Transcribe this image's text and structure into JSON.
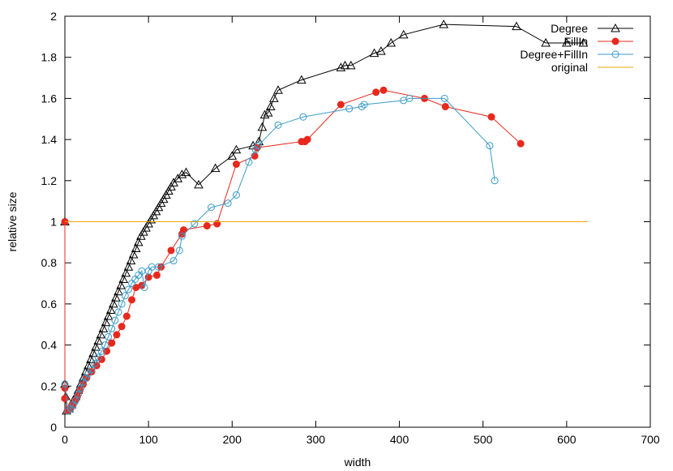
{
  "chart_data": {
    "type": "line",
    "xlabel": "width",
    "ylabel": "relative size",
    "xlim": [
      0,
      700
    ],
    "ylim": [
      0,
      2
    ],
    "xticks": [
      0,
      100,
      200,
      300,
      400,
      500,
      600,
      700
    ],
    "yticks": [
      0,
      0.2,
      0.4,
      0.6,
      0.8,
      1,
      1.2,
      1.4,
      1.6,
      1.8,
      2
    ],
    "grid": false,
    "legend_position": "top-right",
    "series": [
      {
        "name": "Degree",
        "color": "#000000",
        "marker": "triangle-open",
        "points": [
          [
            0,
            1.0
          ],
          [
            0,
            0.21
          ],
          [
            1,
            0.15
          ],
          [
            2,
            0.08
          ],
          [
            5,
            0.09
          ],
          [
            8,
            0.11
          ],
          [
            10,
            0.13
          ],
          [
            13,
            0.15
          ],
          [
            16,
            0.18
          ],
          [
            19,
            0.21
          ],
          [
            22,
            0.24
          ],
          [
            25,
            0.27
          ],
          [
            28,
            0.3
          ],
          [
            31,
            0.33
          ],
          [
            34,
            0.36
          ],
          [
            37,
            0.39
          ],
          [
            40,
            0.42
          ],
          [
            43,
            0.45
          ],
          [
            46,
            0.48
          ],
          [
            49,
            0.51
          ],
          [
            52,
            0.54
          ],
          [
            55,
            0.57
          ],
          [
            58,
            0.6
          ],
          [
            61,
            0.63
          ],
          [
            64,
            0.66
          ],
          [
            67,
            0.69
          ],
          [
            70,
            0.72
          ],
          [
            73,
            0.75
          ],
          [
            76,
            0.78
          ],
          [
            79,
            0.81
          ],
          [
            82,
            0.84
          ],
          [
            85,
            0.87
          ],
          [
            88,
            0.9
          ],
          [
            91,
            0.93
          ],
          [
            94,
            0.95
          ],
          [
            97,
            0.97
          ],
          [
            100,
            0.99
          ],
          [
            103,
            1.01
          ],
          [
            106,
            1.03
          ],
          [
            109,
            1.05
          ],
          [
            112,
            1.07
          ],
          [
            115,
            1.09
          ],
          [
            118,
            1.11
          ],
          [
            121,
            1.13
          ],
          [
            124,
            1.15
          ],
          [
            127,
            1.17
          ],
          [
            130,
            1.19
          ],
          [
            135,
            1.21
          ],
          [
            140,
            1.23
          ],
          [
            145,
            1.24
          ],
          [
            160,
            1.18
          ],
          [
            180,
            1.26
          ],
          [
            200,
            1.32
          ],
          [
            205,
            1.35
          ],
          [
            225,
            1.37
          ],
          [
            232,
            1.39
          ],
          [
            236,
            1.46
          ],
          [
            239,
            1.52
          ],
          [
            243,
            1.53
          ],
          [
            246,
            1.56
          ],
          [
            250,
            1.6
          ],
          [
            255,
            1.64
          ],
          [
            283,
            1.69
          ],
          [
            330,
            1.75
          ],
          [
            335,
            1.76
          ],
          [
            342,
            1.76
          ],
          [
            370,
            1.82
          ],
          [
            378,
            1.83
          ],
          [
            390,
            1.87
          ],
          [
            405,
            1.91
          ],
          [
            453,
            1.96
          ],
          [
            540,
            1.95
          ],
          [
            575,
            1.87
          ],
          [
            600,
            1.87
          ],
          [
            620,
            1.87
          ]
        ]
      },
      {
        "name": "FillIn",
        "color": "#e8281d",
        "marker": "circle-filled",
        "points": [
          [
            0,
            1.0
          ],
          [
            0,
            0.19
          ],
          [
            0,
            0.14
          ],
          [
            3,
            0.08
          ],
          [
            6,
            0.09
          ],
          [
            9,
            0.11
          ],
          [
            12,
            0.13
          ],
          [
            15,
            0.15
          ],
          [
            18,
            0.18
          ],
          [
            22,
            0.21
          ],
          [
            26,
            0.24
          ],
          [
            32,
            0.27
          ],
          [
            38,
            0.3
          ],
          [
            44,
            0.33
          ],
          [
            50,
            0.37
          ],
          [
            56,
            0.41
          ],
          [
            62,
            0.45
          ],
          [
            68,
            0.49
          ],
          [
            74,
            0.54
          ],
          [
            80,
            0.62
          ],
          [
            85,
            0.68
          ],
          [
            92,
            0.69
          ],
          [
            100,
            0.73
          ],
          [
            110,
            0.74
          ],
          [
            115,
            0.78
          ],
          [
            127,
            0.86
          ],
          [
            140,
            0.94
          ],
          [
            142,
            0.96
          ],
          [
            170,
            0.98
          ],
          [
            182,
            0.99
          ],
          [
            205,
            1.28
          ],
          [
            227,
            1.32
          ],
          [
            230,
            1.36
          ],
          [
            283,
            1.39
          ],
          [
            287,
            1.39
          ],
          [
            290,
            1.4
          ],
          [
            330,
            1.57
          ],
          [
            372,
            1.63
          ],
          [
            381,
            1.64
          ],
          [
            430,
            1.6
          ],
          [
            455,
            1.56
          ],
          [
            510,
            1.51
          ],
          [
            545,
            1.38
          ]
        ]
      },
      {
        "name": "Degree+FillIn",
        "color": "#3a9ac9",
        "marker": "circle-open",
        "points": [
          [
            0,
            0.21
          ],
          [
            4,
            0.08
          ],
          [
            7,
            0.09
          ],
          [
            10,
            0.11
          ],
          [
            13,
            0.13
          ],
          [
            16,
            0.16
          ],
          [
            19,
            0.19
          ],
          [
            22,
            0.22
          ],
          [
            25,
            0.24
          ],
          [
            28,
            0.26
          ],
          [
            32,
            0.28
          ],
          [
            36,
            0.31
          ],
          [
            40,
            0.34
          ],
          [
            44,
            0.37
          ],
          [
            48,
            0.4
          ],
          [
            52,
            0.44
          ],
          [
            56,
            0.48
          ],
          [
            60,
            0.52
          ],
          [
            64,
            0.56
          ],
          [
            68,
            0.6
          ],
          [
            72,
            0.64
          ],
          [
            76,
            0.67
          ],
          [
            80,
            0.7
          ],
          [
            84,
            0.72
          ],
          [
            88,
            0.74
          ],
          [
            92,
            0.76
          ],
          [
            95,
            0.68
          ],
          [
            100,
            0.76
          ],
          [
            104,
            0.78
          ],
          [
            112,
            0.78
          ],
          [
            130,
            0.81
          ],
          [
            137,
            0.86
          ],
          [
            140,
            0.93
          ],
          [
            155,
            0.99
          ],
          [
            175,
            1.07
          ],
          [
            195,
            1.09
          ],
          [
            205,
            1.13
          ],
          [
            220,
            1.29
          ],
          [
            228,
            1.35
          ],
          [
            231,
            1.37
          ],
          [
            255,
            1.47
          ],
          [
            285,
            1.51
          ],
          [
            340,
            1.55
          ],
          [
            355,
            1.56
          ],
          [
            358,
            1.57
          ],
          [
            405,
            1.59
          ],
          [
            412,
            1.6
          ],
          [
            454,
            1.6
          ],
          [
            508,
            1.37
          ],
          [
            514,
            1.2
          ]
        ]
      },
      {
        "name": "original",
        "color": "#e5a50a",
        "marker": "none",
        "points": [
          [
            0,
            1.0
          ],
          [
            625,
            1.0
          ]
        ]
      }
    ]
  }
}
